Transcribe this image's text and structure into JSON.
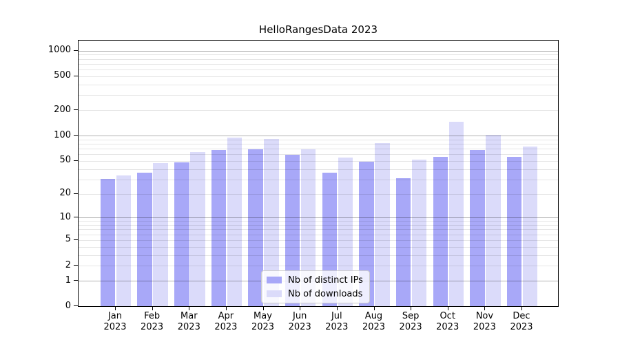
{
  "title": "HelloRangesData 2023",
  "colors": {
    "ips_bar": "#a8a8f8",
    "downloads_bar": "#dbdbfa",
    "major_grid": "rgba(0,0,0,0.31)",
    "minor_grid": "rgba(0,0,0,0.10)",
    "axis": "#000000",
    "background": "#ffffff",
    "legend_border": "#cccccc",
    "legend_bg": "rgba(255,255,255,0.8)",
    "text": "#000000"
  },
  "legend": {
    "items": [
      {
        "label": "Nb of distinct IPs",
        "color_key": "ips_bar"
      },
      {
        "label": "Nb of downloads",
        "color_key": "downloads_bar"
      }
    ]
  },
  "chart_data": {
    "type": "bar",
    "title": "HelloRangesData 2023",
    "categories": [
      "Jan 2023",
      "Feb 2023",
      "Mar 2023",
      "Apr 2023",
      "May 2023",
      "Jun 2023",
      "Jul 2023",
      "Aug 2023",
      "Sep 2023",
      "Oct 2023",
      "Nov 2023",
      "Dec 2023"
    ],
    "series": [
      {
        "name": "Nb of distinct IPs",
        "values": [
          29,
          35,
          46,
          65,
          66,
          57,
          35,
          47,
          30,
          54,
          65,
          54
        ]
      },
      {
        "name": "Nb of downloads",
        "values": [
          32,
          45,
          61,
          92,
          87,
          66,
          53,
          78,
          50,
          140,
          98,
          72
        ]
      }
    ],
    "yscale": "log1p",
    "y_ticks": [
      0,
      1,
      2,
      5,
      10,
      20,
      50,
      100,
      200,
      500,
      1000
    ],
    "y_tick_labels": [
      "0",
      "1",
      "2",
      "5",
      "10",
      "20",
      "50",
      "100",
      "200",
      "500",
      "1000"
    ],
    "ylim": [
      0,
      1310
    ],
    "grid": true,
    "grid_major_at": [
      1,
      10,
      100,
      1000
    ],
    "legend_position": "lower center",
    "xlabel": "",
    "ylabel": ""
  }
}
